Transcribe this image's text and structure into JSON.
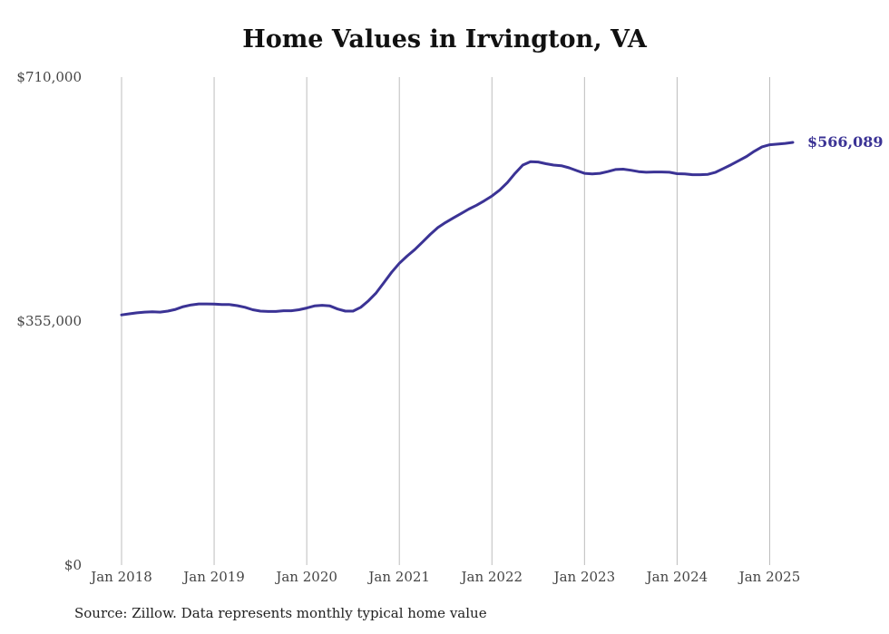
{
  "chart_data": {
    "type": "line",
    "title": "Home Values in Irvington, VA",
    "xlabel": "",
    "ylabel": "",
    "ylim": [
      0,
      710000
    ],
    "y_ticks": [
      0,
      355000,
      710000
    ],
    "y_tick_labels": [
      "$0",
      "$355,000",
      "$710,000"
    ],
    "x_ticks": [
      "2018-01",
      "2019-01",
      "2020-01",
      "2021-01",
      "2022-01",
      "2023-01",
      "2024-01",
      "2025-01"
    ],
    "x_tick_labels": [
      "Jan 2018",
      "Jan 2019",
      "Jan 2020",
      "Jan 2021",
      "Jan 2022",
      "Jan 2023",
      "Jan 2024",
      "Jan 2025"
    ],
    "xlim": [
      "2018-01",
      "2025-04"
    ],
    "grid": "vertical",
    "end_label": "$566,089",
    "color": "#3b3395",
    "series": [
      {
        "x": [
          "2018-01",
          "2018-02",
          "2018-03",
          "2018-04",
          "2018-05",
          "2018-06",
          "2018-07",
          "2018-08",
          "2018-09",
          "2018-10",
          "2018-11",
          "2018-12",
          "2019-01",
          "2019-02",
          "2019-03",
          "2019-04",
          "2019-05",
          "2019-06",
          "2019-07",
          "2019-08",
          "2019-09",
          "2019-10",
          "2019-11",
          "2019-12",
          "2020-01",
          "2020-02",
          "2020-03",
          "2020-04",
          "2020-05",
          "2020-06",
          "2020-07",
          "2020-08",
          "2020-09",
          "2020-10",
          "2020-11",
          "2020-12",
          "2021-01",
          "2021-02",
          "2021-03",
          "2021-04",
          "2021-05",
          "2021-06",
          "2021-07",
          "2021-08",
          "2021-09",
          "2021-10",
          "2021-11",
          "2021-12",
          "2022-01",
          "2022-02",
          "2022-03",
          "2022-04",
          "2022-05",
          "2022-06",
          "2022-07",
          "2022-08",
          "2022-09",
          "2022-10",
          "2022-11",
          "2022-12",
          "2023-01",
          "2023-02",
          "2023-03",
          "2023-04",
          "2023-05",
          "2023-06",
          "2023-07",
          "2023-08",
          "2023-09",
          "2023-10",
          "2023-11",
          "2023-12",
          "2024-01",
          "2024-02",
          "2024-03",
          "2024-04",
          "2024-05",
          "2024-06",
          "2024-07",
          "2024-08",
          "2024-09",
          "2024-10",
          "2024-11",
          "2024-12",
          "2025-01",
          "2025-02",
          "2025-03",
          "2025-04"
        ],
        "values": [
          364000,
          365500,
          367000,
          368000,
          368500,
          368000,
          369500,
          372000,
          376000,
          378500,
          380000,
          380000,
          379800,
          379000,
          379000,
          377500,
          375000,
          371500,
          369500,
          369000,
          369000,
          370000,
          370000,
          371500,
          374000,
          377000,
          378000,
          377000,
          372500,
          369500,
          369500,
          375000,
          384500,
          396000,
          411000,
          426000,
          439000,
          449500,
          459000,
          470000,
          481000,
          491000,
          498500,
          505000,
          511500,
          518000,
          523500,
          530000,
          537000,
          545500,
          556500,
          570000,
          582000,
          587000,
          586500,
          584000,
          582000,
          581000,
          578000,
          574000,
          570000,
          569000,
          570000,
          572500,
          575500,
          576000,
          574500,
          572500,
          571500,
          572000,
          572000,
          571500,
          569500,
          569000,
          568000,
          568000,
          568500,
          571500,
          577000,
          582500,
          588500,
          594500,
          602000,
          608500,
          611500,
          612500,
          613500,
          566089
        ]
      }
    ]
  },
  "footer": {
    "source": "Source: Zillow. Data represents monthly typical home value"
  }
}
